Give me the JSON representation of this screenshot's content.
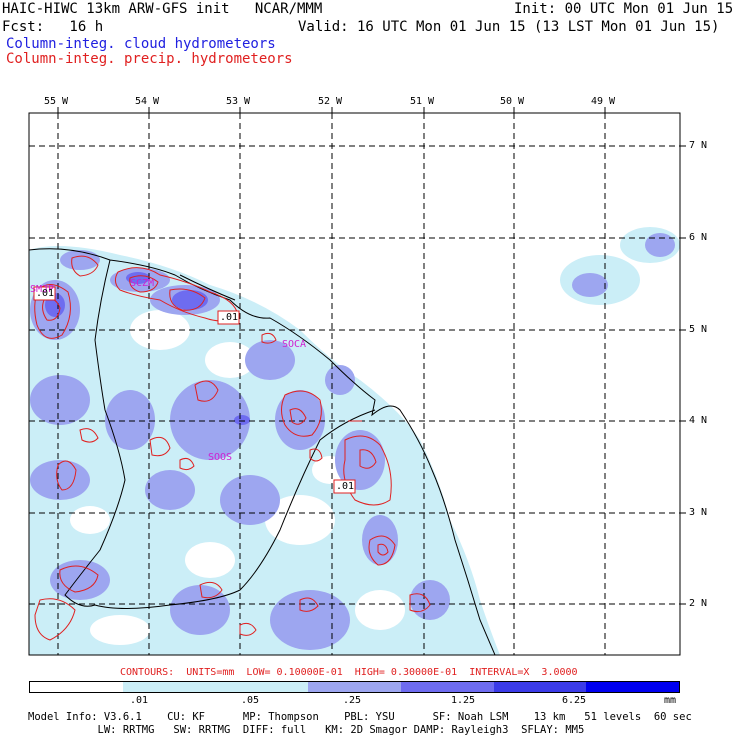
{
  "header": {
    "line1_left": "HAIC-HIWC 13km ARW-GFS init   NCAR/MMM",
    "line1_right": "Init: 00 UTC Mon 01 Jun 15",
    "line2_left": "Fcst:   16 h",
    "line2_right": "Valid: 16 UTC Mon 01 Jun 15 (13 LST Mon 01 Jun 15)",
    "field1": "Column-integ. cloud hydrometeors",
    "field2": "Column-integ. precip. hydrometeors"
  },
  "map": {
    "lon_labels": [
      "55 W",
      "54 W",
      "53 W",
      "52 W",
      "51 W",
      "50 W",
      "49 W"
    ],
    "lat_labels": [
      "7 N",
      "6 N",
      "5 N",
      "4 N",
      "3 N",
      "2 N"
    ],
    "stations": [
      "SMJP",
      "SOCA",
      "SOOS",
      "SCZM"
    ],
    "contour_labels": [
      ".01",
      ".01",
      ".01"
    ]
  },
  "colors": {
    "cloud_light": "#cbeef7",
    "cloud_mid": "#9da6f0",
    "cloud_strong": "#6e6cf0",
    "cloud_deep": "#3b3be8",
    "precip_contour": "#e02020",
    "station": "#d020d0",
    "coast": "#000000"
  },
  "contour_info": "CONTOURS:  UNITS=mm  LOW= 0.10000E-01  HIGH= 0.30000E-01  INTERVAL=X  3.0000",
  "legend": {
    "labels": [
      ".01",
      ".05",
      ".25",
      "1.25",
      "6.25",
      "mm"
    ],
    "colors": [
      "#ffffff",
      "#cbeef7",
      "#9da6f0",
      "#6e6cf0",
      "#3b3be8",
      "#1a1ae8",
      "#0000f0"
    ]
  },
  "model_info": {
    "line1": "Model Info: V3.6.1    CU: KF      MP: Thompson    PBL: YSU      SF: Noah LSM    13 km   51 levels  60 sec",
    "line2": "           LW: RRTMG   SW: RRTMG  DIFF: full   KM: 2D Smagor DAMP: Rayleigh3  SFLAY: MM5"
  }
}
